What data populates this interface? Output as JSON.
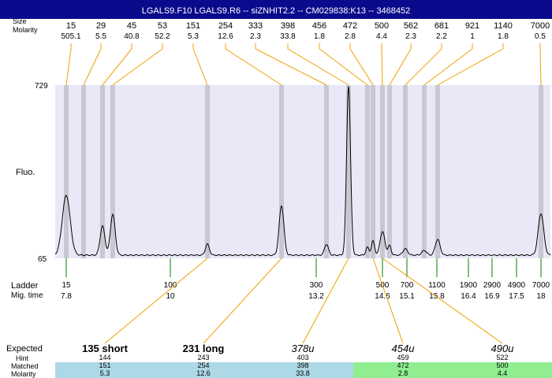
{
  "title": "LGALS9.F10  LGALS9.R6 -- siZNHIT2.2 -- CM029838:K13 -- 3468452",
  "labels": {
    "size": "Size",
    "molarity": "Molarity",
    "fluo": "Fluo.",
    "ladder": "Ladder",
    "migtime": "Mig. time",
    "expected": "Expected",
    "hint": "Hint",
    "matched": "Matched",
    "molarity_bottom": "Molarity",
    "ymax": "729",
    "ymin": "65"
  },
  "peaks": [
    {
      "size": "15",
      "molarity": "505.1"
    },
    {
      "size": "29",
      "molarity": "5.5"
    },
    {
      "size": "45",
      "molarity": "40.8"
    },
    {
      "size": "53",
      "molarity": "52.2"
    },
    {
      "size": "151",
      "molarity": "5.3"
    },
    {
      "size": "254",
      "molarity": "12.6"
    },
    {
      "size": "333",
      "molarity": "2.3"
    },
    {
      "size": "398",
      "molarity": "33.8"
    },
    {
      "size": "456",
      "molarity": "1.8"
    },
    {
      "size": "472",
      "molarity": "2.8"
    },
    {
      "size": "500",
      "molarity": "4.4"
    },
    {
      "size": "562",
      "molarity": "2.3"
    },
    {
      "size": "681",
      "molarity": "2.2"
    },
    {
      "size": "921",
      "molarity": "1"
    },
    {
      "size": "1140",
      "molarity": "1.8"
    },
    {
      "size": "7000",
      "molarity": "0.5"
    }
  ],
  "ladder": [
    {
      "size": "15",
      "time": "7.8"
    },
    {
      "size": "100",
      "time": "10"
    },
    {
      "size": "300",
      "time": "13.2"
    },
    {
      "size": "500",
      "time": "14.6"
    },
    {
      "size": "700",
      "time": "15.1"
    },
    {
      "size": "1100",
      "time": "15.8"
    },
    {
      "size": "1900",
      "time": "16.4"
    },
    {
      "size": "2900",
      "time": "16.9"
    },
    {
      "size": "4900",
      "time": "17.5"
    },
    {
      "size": "7000",
      "time": "18"
    }
  ],
  "expected": [
    {
      "label": "135 short",
      "hint": "144",
      "matched": "151",
      "molarity": "5.3",
      "style": "bold",
      "color": "#add8e6"
    },
    {
      "label": "231 long",
      "hint": "243",
      "matched": "254",
      "molarity": "12.6",
      "style": "bold",
      "color": "#add8e6"
    },
    {
      "label": "378u",
      "hint": "403",
      "matched": "398",
      "molarity": "33.8",
      "style": "italic",
      "color": "#add8e6"
    },
    {
      "label": "454u",
      "hint": "459",
      "matched": "472",
      "molarity": "2.8",
      "style": "italic",
      "color": "#90ee90"
    },
    {
      "label": "490u",
      "hint": "522",
      "matched": "500",
      "molarity": "4.4",
      "style": "italic",
      "color": "#90ee90"
    }
  ]
}
